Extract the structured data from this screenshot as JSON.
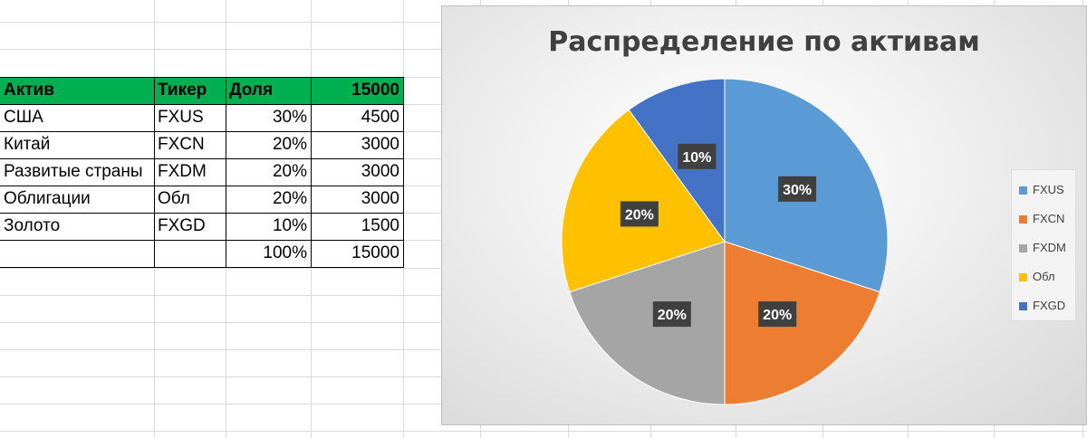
{
  "table": {
    "headers": [
      "Актив",
      "Тикер",
      "Доля",
      "15000"
    ],
    "rows": [
      [
        "США",
        "FXUS",
        "30%",
        "4500"
      ],
      [
        "Китай",
        "FXCN",
        "20%",
        "3000"
      ],
      [
        "Развитые страны",
        "FXDM",
        "20%",
        "3000"
      ],
      [
        "Облигации",
        "Обл",
        "20%",
        "3000"
      ],
      [
        "Золото",
        "FXGD",
        "10%",
        "1500"
      ],
      [
        "",
        "",
        "100%",
        "15000"
      ]
    ],
    "header_color": "#00b050"
  },
  "chart_data": {
    "type": "pie",
    "title": "Распределение по активам",
    "categories": [
      "FXUS",
      "FXCN",
      "FXDM",
      "Обл",
      "FXGD"
    ],
    "values": [
      30,
      20,
      20,
      20,
      10
    ],
    "data_labels": [
      "30%",
      "20%",
      "20%",
      "20%",
      "10%"
    ],
    "colors": [
      "#5b9bd5",
      "#ed7d31",
      "#a5a5a5",
      "#ffc000",
      "#4472c4"
    ],
    "legend_position": "right"
  }
}
